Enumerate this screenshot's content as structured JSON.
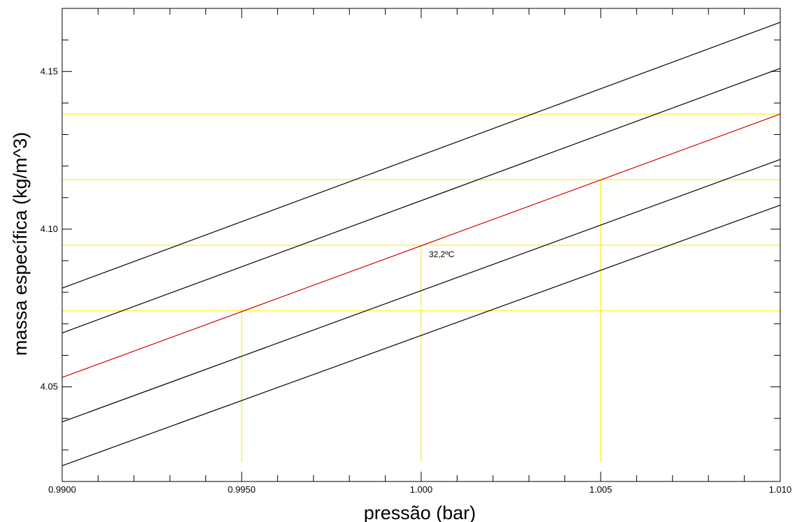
{
  "chart_data": {
    "type": "line",
    "xlabel": "pressão (bar)",
    "ylabel": "massa específica (kg/m^3)",
    "xlim": [
      0.99,
      1.01
    ],
    "ylim": [
      4.02,
      4.17
    ],
    "x_tick_labels": [
      {
        "value": 0.99,
        "label": "0.9900"
      },
      {
        "value": 0.995,
        "label": "0.9950"
      },
      {
        "value": 1.0,
        "label": "1.000"
      },
      {
        "value": 1.005,
        "label": "1.005"
      },
      {
        "value": 1.01,
        "label": "1.010"
      }
    ],
    "y_tick_labels": [
      {
        "value": 4.05,
        "label": "4.05"
      },
      {
        "value": 4.1,
        "label": "4.10"
      },
      {
        "value": 4.15,
        "label": "4.15"
      }
    ],
    "x_minor_step": 0.001,
    "y_minor_step": 0.01,
    "grid": false,
    "series": [
      {
        "color": "#000000",
        "x": [
          0.99,
          1.01
        ],
        "y": [
          4.0813,
          4.1656
        ]
      },
      {
        "color": "#000000",
        "x": [
          0.99,
          1.01
        ],
        "y": [
          4.0671,
          4.151
        ]
      },
      {
        "color": "#dd0000",
        "x": [
          0.99,
          1.01
        ],
        "y": [
          4.053,
          4.1365
        ]
      },
      {
        "color": "#000000",
        "x": [
          0.99,
          1.01
        ],
        "y": [
          4.0389,
          4.1221
        ]
      },
      {
        "color": "#000000",
        "x": [
          0.99,
          1.01
        ],
        "y": [
          4.025,
          4.1076
        ]
      }
    ],
    "guides": {
      "color": "#ffee00",
      "horizontal": [
        4.0741,
        4.0949,
        4.1157,
        4.1365
      ],
      "vertical": [
        {
          "x": 0.995,
          "y_top": 4.0741
        },
        {
          "x": 1.0,
          "y_top": 4.0949
        },
        {
          "x": 1.005,
          "y_top": 4.1157
        }
      ]
    },
    "annotations": [
      {
        "text": "32,2ºC",
        "x": 1.0,
        "y": 4.0949
      }
    ]
  }
}
